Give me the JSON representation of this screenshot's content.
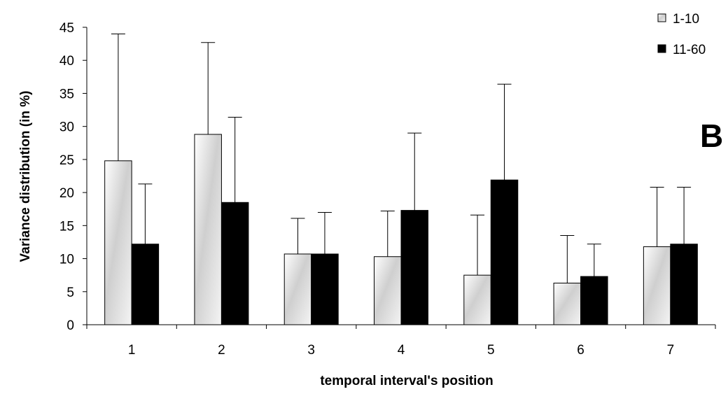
{
  "chart_data": {
    "type": "bar",
    "categories": [
      "1",
      "2",
      "3",
      "4",
      "5",
      "6",
      "7"
    ],
    "series": [
      {
        "name": "1-10",
        "values": [
          24.8,
          28.8,
          10.7,
          10.3,
          7.5,
          6.3,
          11.8
        ],
        "error": [
          19.2,
          13.9,
          5.4,
          6.9,
          9.1,
          7.2,
          9.0
        ],
        "color": "#e8e8e8"
      },
      {
        "name": "11-60",
        "values": [
          12.2,
          18.5,
          10.7,
          17.3,
          21.9,
          7.3,
          12.2
        ],
        "error": [
          9.1,
          12.9,
          6.3,
          11.7,
          14.5,
          4.9,
          8.6
        ],
        "color": "#000000"
      }
    ],
    "xlabel": "temporal interval's position",
    "ylabel": "Variance distribution (in %)",
    "ylim": [
      0,
      45
    ],
    "yticks": [
      "0",
      "5",
      "10",
      "15",
      "20",
      "25",
      "30",
      "35",
      "40",
      "45"
    ],
    "grid": false,
    "legend_position": "top-right",
    "panel_label": "B"
  }
}
